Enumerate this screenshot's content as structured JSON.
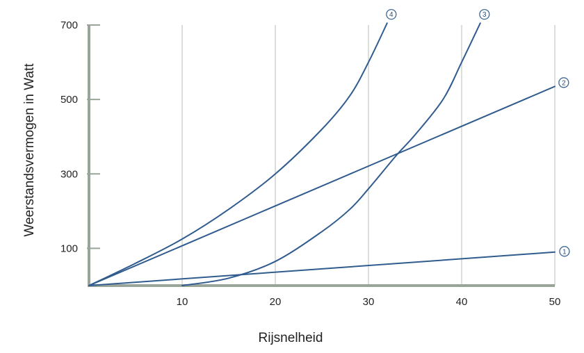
{
  "chart_data": {
    "type": "line",
    "title": "",
    "xlabel": "Rijsnelheid",
    "ylabel": "Weerstandsvermogen in Watt",
    "xlim": [
      0,
      50
    ],
    "ylim": [
      0,
      700
    ],
    "xticks": [
      10,
      20,
      30,
      40,
      50
    ],
    "xtick_labels": [
      "10",
      "20",
      "30",
      "40",
      "50"
    ],
    "yticks": [
      100,
      300,
      500,
      700
    ],
    "ytick_labels": [
      "100",
      "300",
      "500",
      "700"
    ],
    "grid": "vertical",
    "colors": {
      "line": "#2f5b8e",
      "axis": "#99a599",
      "grid": "#c4c8c4"
    },
    "series": [
      {
        "marker": "1",
        "x": [
          0,
          50
        ],
        "y": [
          0,
          90
        ]
      },
      {
        "marker": "2",
        "x": [
          0,
          50
        ],
        "y": [
          0,
          535
        ]
      },
      {
        "marker": "3",
        "x": [
          10,
          15,
          20,
          25,
          28,
          30,
          33,
          35,
          38,
          40,
          42
        ],
        "y": [
          0,
          20,
          65,
          145,
          205,
          260,
          350,
          405,
          500,
          600,
          705
        ]
      },
      {
        "marker": "4",
        "x": [
          0,
          5,
          10,
          15,
          20,
          25,
          28,
          30,
          32
        ],
        "y": [
          0,
          60,
          125,
          205,
          300,
          420,
          510,
          600,
          705
        ]
      }
    ]
  }
}
